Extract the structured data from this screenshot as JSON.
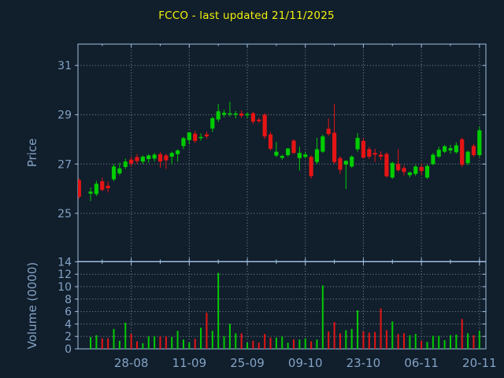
{
  "title": "FCCO - last updated 21/11/2025",
  "colors": {
    "background": "#111e2c",
    "frame": "#9fc0df",
    "tick_label": "#83a3c4",
    "title": "#f2f20c",
    "up": "#00cc00",
    "down": "#e51414",
    "grid": "rgba(210,220,230,0.6)"
  },
  "chart_data": {
    "type": "candlestick",
    "title": "FCCO - last updated 21/11/2025",
    "legend": "none",
    "grid": "dotted, at major date ticks and even price/volume levels",
    "x_tick_labels": [
      "28-08",
      "11-09",
      "25-09",
      "09-10",
      "23-10",
      "06-11",
      "20-11"
    ],
    "x_major_indices": [
      9,
      19,
      29,
      39,
      49,
      59,
      69
    ],
    "x_minor_indices": [
      4,
      14,
      24,
      34,
      44,
      54,
      64
    ],
    "price_axis": {
      "label": "Price",
      "ticks": [
        25,
        27,
        29,
        31
      ],
      "ylim": [
        23.1,
        31.9
      ]
    },
    "volume_axis": {
      "label": "Volume (0000)",
      "ticks": [
        0,
        2,
        4,
        6,
        8,
        10,
        12,
        14
      ],
      "ylim": [
        0,
        14
      ]
    },
    "candles_format": [
      "open",
      "high",
      "low",
      "close",
      "volume_0000"
    ],
    "candles": [
      [
        26.35,
        26.42,
        25.6,
        25.67,
        0
      ],
      null,
      [
        25.8,
        26.05,
        25.5,
        25.88,
        1.9
      ],
      [
        25.78,
        26.32,
        25.7,
        26.2,
        2.2
      ],
      [
        26.3,
        26.45,
        25.9,
        25.95,
        1.7
      ],
      [
        26.12,
        26.3,
        25.85,
        26.02,
        1.7
      ],
      [
        26.38,
        27.0,
        26.3,
        26.9,
        3.2
      ],
      [
        26.62,
        27.05,
        26.55,
        26.82,
        1.3
      ],
      [
        26.88,
        27.22,
        26.8,
        27.1,
        4.2
      ],
      [
        27.18,
        27.3,
        26.9,
        27.02,
        2.4
      ],
      [
        27.28,
        27.4,
        27.0,
        27.12,
        1.2
      ],
      [
        27.1,
        27.35,
        27.0,
        27.3,
        0.9
      ],
      [
        27.2,
        27.4,
        27.05,
        27.35,
        2.0
      ],
      [
        27.22,
        27.45,
        27.1,
        27.38,
        2.0
      ],
      [
        27.4,
        27.48,
        26.85,
        27.1,
        2.0
      ],
      [
        27.35,
        27.42,
        26.8,
        27.15,
        2.0
      ],
      [
        27.3,
        27.5,
        27.0,
        27.45,
        1.9
      ],
      [
        27.4,
        27.6,
        27.1,
        27.55,
        2.9
      ],
      [
        27.73,
        28.1,
        27.6,
        28.05,
        1.5
      ],
      [
        27.97,
        28.3,
        27.8,
        28.28,
        1.0
      ],
      [
        28.23,
        28.35,
        27.85,
        27.94,
        1.6
      ],
      [
        28.05,
        28.25,
        27.95,
        28.1,
        3.4
      ],
      [
        28.2,
        28.32,
        28.02,
        28.12,
        5.8
      ],
      [
        28.44,
        28.92,
        28.3,
        28.86,
        2.9
      ],
      [
        28.81,
        29.44,
        28.7,
        29.14,
        12.2
      ],
      [
        29.0,
        29.2,
        28.9,
        29.08,
        2.0
      ],
      [
        29.02,
        29.53,
        28.92,
        29.06,
        4.0
      ],
      [
        29.0,
        29.15,
        28.85,
        29.05,
        2.5
      ],
      [
        29.05,
        29.18,
        28.88,
        28.96,
        2.5
      ],
      [
        28.98,
        29.1,
        28.86,
        29.03,
        1.0
      ],
      [
        29.06,
        29.12,
        28.62,
        28.72,
        1.3
      ],
      [
        28.8,
        28.88,
        28.66,
        28.74,
        1.0
      ],
      [
        29.0,
        29.06,
        28.02,
        28.12,
        2.4
      ],
      [
        28.2,
        28.3,
        27.55,
        27.62,
        1.8
      ],
      [
        27.34,
        27.9,
        27.28,
        27.5,
        1.8
      ],
      [
        27.25,
        27.38,
        27.18,
        27.33,
        2.0
      ],
      [
        27.36,
        27.65,
        27.3,
        27.63,
        1.0
      ],
      [
        27.95,
        28.0,
        27.4,
        27.45,
        1.5
      ],
      [
        27.24,
        27.7,
        26.73,
        27.45,
        1.5
      ],
      [
        27.29,
        27.5,
        27.22,
        27.39,
        1.7
      ],
      [
        27.29,
        27.35,
        26.41,
        26.51,
        1.2
      ],
      [
        27.08,
        28.07,
        27.0,
        27.6,
        1.5
      ],
      [
        27.5,
        28.2,
        27.45,
        28.12,
        10.2
      ],
      [
        28.43,
        28.85,
        28.15,
        28.22,
        2.8
      ],
      [
        28.27,
        29.44,
        27.0,
        27.08,
        4.3
      ],
      [
        27.24,
        27.32,
        26.6,
        26.77,
        2.5
      ],
      [
        26.98,
        27.15,
        25.99,
        27.13,
        3.0
      ],
      [
        26.9,
        27.35,
        26.85,
        27.3,
        3.2
      ],
      [
        27.6,
        28.26,
        27.5,
        28.06,
        6.2
      ],
      [
        27.94,
        28.05,
        27.22,
        27.26,
        2.8
      ],
      [
        27.6,
        27.7,
        27.2,
        27.3,
        2.6
      ],
      [
        27.45,
        27.62,
        27.08,
        27.38,
        2.7
      ],
      [
        27.38,
        27.52,
        27.15,
        27.3,
        6.5
      ],
      [
        27.41,
        27.48,
        26.45,
        26.5,
        3.0
      ],
      [
        26.45,
        27.1,
        26.4,
        27.04,
        4.4
      ],
      [
        27.0,
        27.6,
        26.7,
        26.75,
        2.4
      ],
      [
        26.84,
        26.95,
        26.54,
        26.68,
        2.5
      ],
      [
        26.55,
        26.7,
        26.45,
        26.66,
        2.2
      ],
      [
        26.6,
        26.96,
        26.52,
        26.9,
        2.4
      ],
      [
        26.88,
        27.02,
        26.55,
        26.72,
        1.3
      ],
      [
        26.45,
        26.98,
        26.4,
        26.92,
        1.1
      ],
      [
        27.0,
        27.45,
        26.95,
        27.38,
        2.1
      ],
      [
        27.3,
        27.7,
        27.25,
        27.58,
        2.1
      ],
      [
        27.5,
        27.78,
        27.45,
        27.72,
        1.4
      ],
      [
        27.55,
        27.78,
        27.42,
        27.64,
        2.2
      ],
      [
        27.48,
        27.88,
        27.42,
        27.76,
        2.3
      ],
      [
        28.0,
        28.08,
        26.88,
        26.97,
        4.8
      ],
      [
        27.04,
        27.55,
        26.95,
        27.5,
        2.5
      ],
      [
        27.73,
        27.82,
        27.28,
        27.36,
        2.2
      ],
      [
        27.36,
        28.53,
        27.28,
        28.37,
        2.9
      ]
    ]
  }
}
